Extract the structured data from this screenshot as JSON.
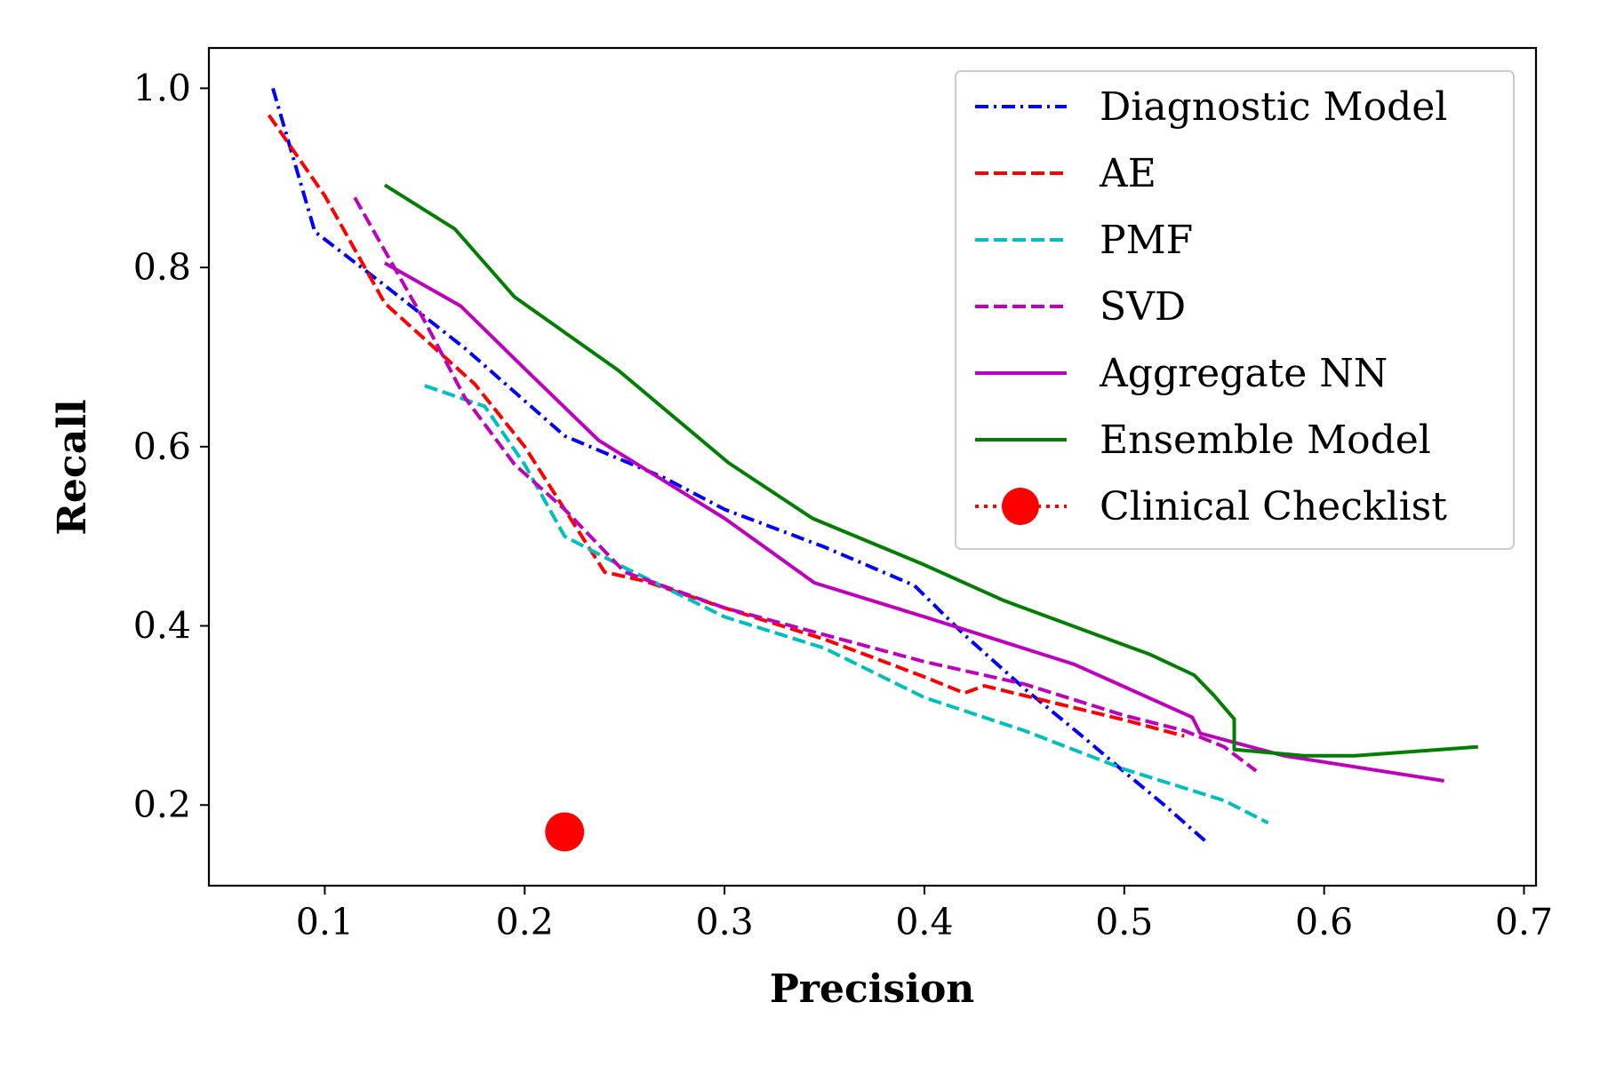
{
  "chart_data": {
    "type": "line",
    "xlabel": "Precision",
    "ylabel": "Recall",
    "xlim": [
      0.042,
      0.706
    ],
    "ylim": [
      0.11,
      1.045
    ],
    "x_ticks": [
      0.1,
      0.2,
      0.3,
      0.4,
      0.5,
      0.6,
      0.7
    ],
    "y_ticks": [
      0.2,
      0.4,
      0.6,
      0.8,
      1.0
    ],
    "x_tick_labels": [
      "0.1",
      "0.2",
      "0.3",
      "0.4",
      "0.5",
      "0.6",
      "0.7"
    ],
    "y_tick_labels": [
      "0.2",
      "0.4",
      "0.6",
      "0.8",
      "1.0"
    ],
    "grid": false,
    "legend_position": "top-right",
    "series": [
      {
        "name": "Diagnostic Model",
        "color": "#0000ff",
        "line_style": "dashdot",
        "points": [
          [
            0.074,
            1.0
          ],
          [
            0.095,
            0.84
          ],
          [
            0.13,
            0.78
          ],
          [
            0.17,
            0.71
          ],
          [
            0.22,
            0.612
          ],
          [
            0.27,
            0.565
          ],
          [
            0.3,
            0.53
          ],
          [
            0.35,
            0.488
          ],
          [
            0.395,
            0.445
          ],
          [
            0.42,
            0.39
          ],
          [
            0.45,
            0.33
          ],
          [
            0.48,
            0.275
          ],
          [
            0.5,
            0.237
          ],
          [
            0.52,
            0.2
          ],
          [
            0.542,
            0.157
          ]
        ]
      },
      {
        "name": "AE",
        "color": "#ff0000",
        "line_style": "dashed",
        "points": [
          [
            0.072,
            0.97
          ],
          [
            0.1,
            0.88
          ],
          [
            0.13,
            0.76
          ],
          [
            0.14,
            0.74
          ],
          [
            0.16,
            0.7
          ],
          [
            0.175,
            0.67
          ],
          [
            0.2,
            0.6
          ],
          [
            0.22,
            0.53
          ],
          [
            0.24,
            0.46
          ],
          [
            0.26,
            0.45
          ],
          [
            0.3,
            0.42
          ],
          [
            0.35,
            0.385
          ],
          [
            0.4,
            0.343
          ],
          [
            0.42,
            0.325
          ],
          [
            0.43,
            0.333
          ],
          [
            0.5,
            0.295
          ],
          [
            0.53,
            0.277
          ]
        ]
      },
      {
        "name": "PMF",
        "color": "#00bfbf",
        "line_style": "dashed",
        "points": [
          [
            0.15,
            0.668
          ],
          [
            0.18,
            0.645
          ],
          [
            0.2,
            0.58
          ],
          [
            0.22,
            0.5
          ],
          [
            0.25,
            0.465
          ],
          [
            0.3,
            0.41
          ],
          [
            0.35,
            0.375
          ],
          [
            0.4,
            0.32
          ],
          [
            0.45,
            0.283
          ],
          [
            0.5,
            0.24
          ],
          [
            0.55,
            0.205
          ],
          [
            0.572,
            0.18
          ]
        ]
      },
      {
        "name": "SVD",
        "color": "#bf00bf",
        "line_style": "dashed",
        "points": [
          [
            0.115,
            0.878
          ],
          [
            0.15,
            0.74
          ],
          [
            0.17,
            0.655
          ],
          [
            0.195,
            0.58
          ],
          [
            0.22,
            0.53
          ],
          [
            0.25,
            0.46
          ],
          [
            0.3,
            0.42
          ],
          [
            0.35,
            0.39
          ],
          [
            0.4,
            0.36
          ],
          [
            0.45,
            0.335
          ],
          [
            0.5,
            0.3
          ],
          [
            0.53,
            0.283
          ],
          [
            0.55,
            0.265
          ],
          [
            0.566,
            0.238
          ]
        ]
      },
      {
        "name": "Aggregate NN",
        "color": "#bf00bf",
        "line_style": "solid",
        "points": [
          [
            0.13,
            0.805
          ],
          [
            0.168,
            0.757
          ],
          [
            0.2,
            0.687
          ],
          [
            0.237,
            0.607
          ],
          [
            0.3,
            0.52
          ],
          [
            0.345,
            0.448
          ],
          [
            0.4,
            0.41
          ],
          [
            0.475,
            0.357
          ],
          [
            0.534,
            0.298
          ],
          [
            0.538,
            0.28
          ],
          [
            0.58,
            0.255
          ],
          [
            0.66,
            0.227
          ]
        ]
      },
      {
        "name": "Ensemble Model",
        "color": "#007f00",
        "line_style": "solid",
        "points": [
          [
            0.13,
            0.892
          ],
          [
            0.165,
            0.843
          ],
          [
            0.195,
            0.767
          ],
          [
            0.247,
            0.685
          ],
          [
            0.302,
            0.582
          ],
          [
            0.344,
            0.52
          ],
          [
            0.4,
            0.468
          ],
          [
            0.44,
            0.428
          ],
          [
            0.513,
            0.368
          ],
          [
            0.535,
            0.345
          ],
          [
            0.545,
            0.322
          ],
          [
            0.555,
            0.296
          ],
          [
            0.555,
            0.262
          ],
          [
            0.59,
            0.255
          ],
          [
            0.615,
            0.255
          ],
          [
            0.677,
            0.265
          ]
        ]
      },
      {
        "name": "Clinical Checklist",
        "color": "#ff0000",
        "line_style": "dotted",
        "marker": "circle",
        "points": [
          [
            0.22,
            0.17
          ]
        ]
      }
    ]
  }
}
